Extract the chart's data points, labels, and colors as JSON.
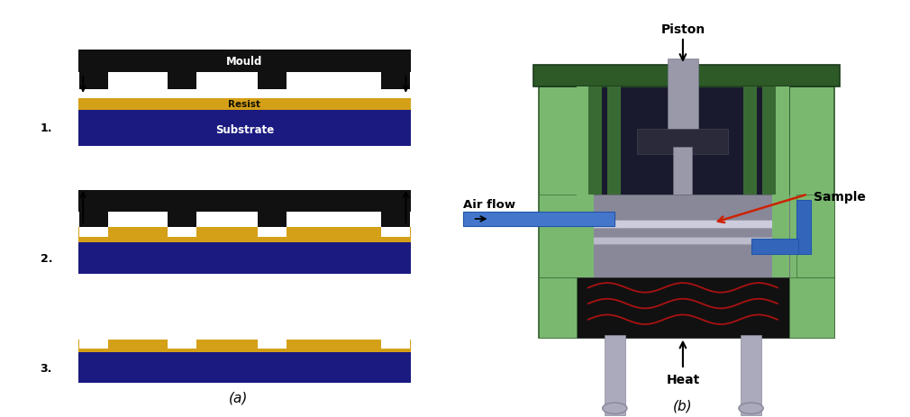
{
  "fig_width": 10.1,
  "fig_height": 4.64,
  "bg_color": "#ffffff",
  "panel_a_label": "(a)",
  "panel_b_label": "(b)",
  "step_labels": [
    "1.",
    "2.",
    "3."
  ],
  "mould_color": "#111111",
  "resist_color": "#D4A017",
  "substrate_color": "#1a1a80",
  "mould_text": "Mould",
  "resist_text": "Resist",
  "substrate_text": "Substrate",
  "piston_label": "Piston",
  "airflow_label": "Air flow",
  "sample_label": "Sample",
  "heat_label": "Heat",
  "red_arrow_color": "#cc2200",
  "machine_dark_green": "#2d5a27",
  "machine_mid_green": "#4a7a44",
  "machine_light_green": "#7ab870",
  "machine_gray": "#9999aa",
  "machine_dark": "#1a1a2e",
  "airflow_blue": "#4477cc"
}
